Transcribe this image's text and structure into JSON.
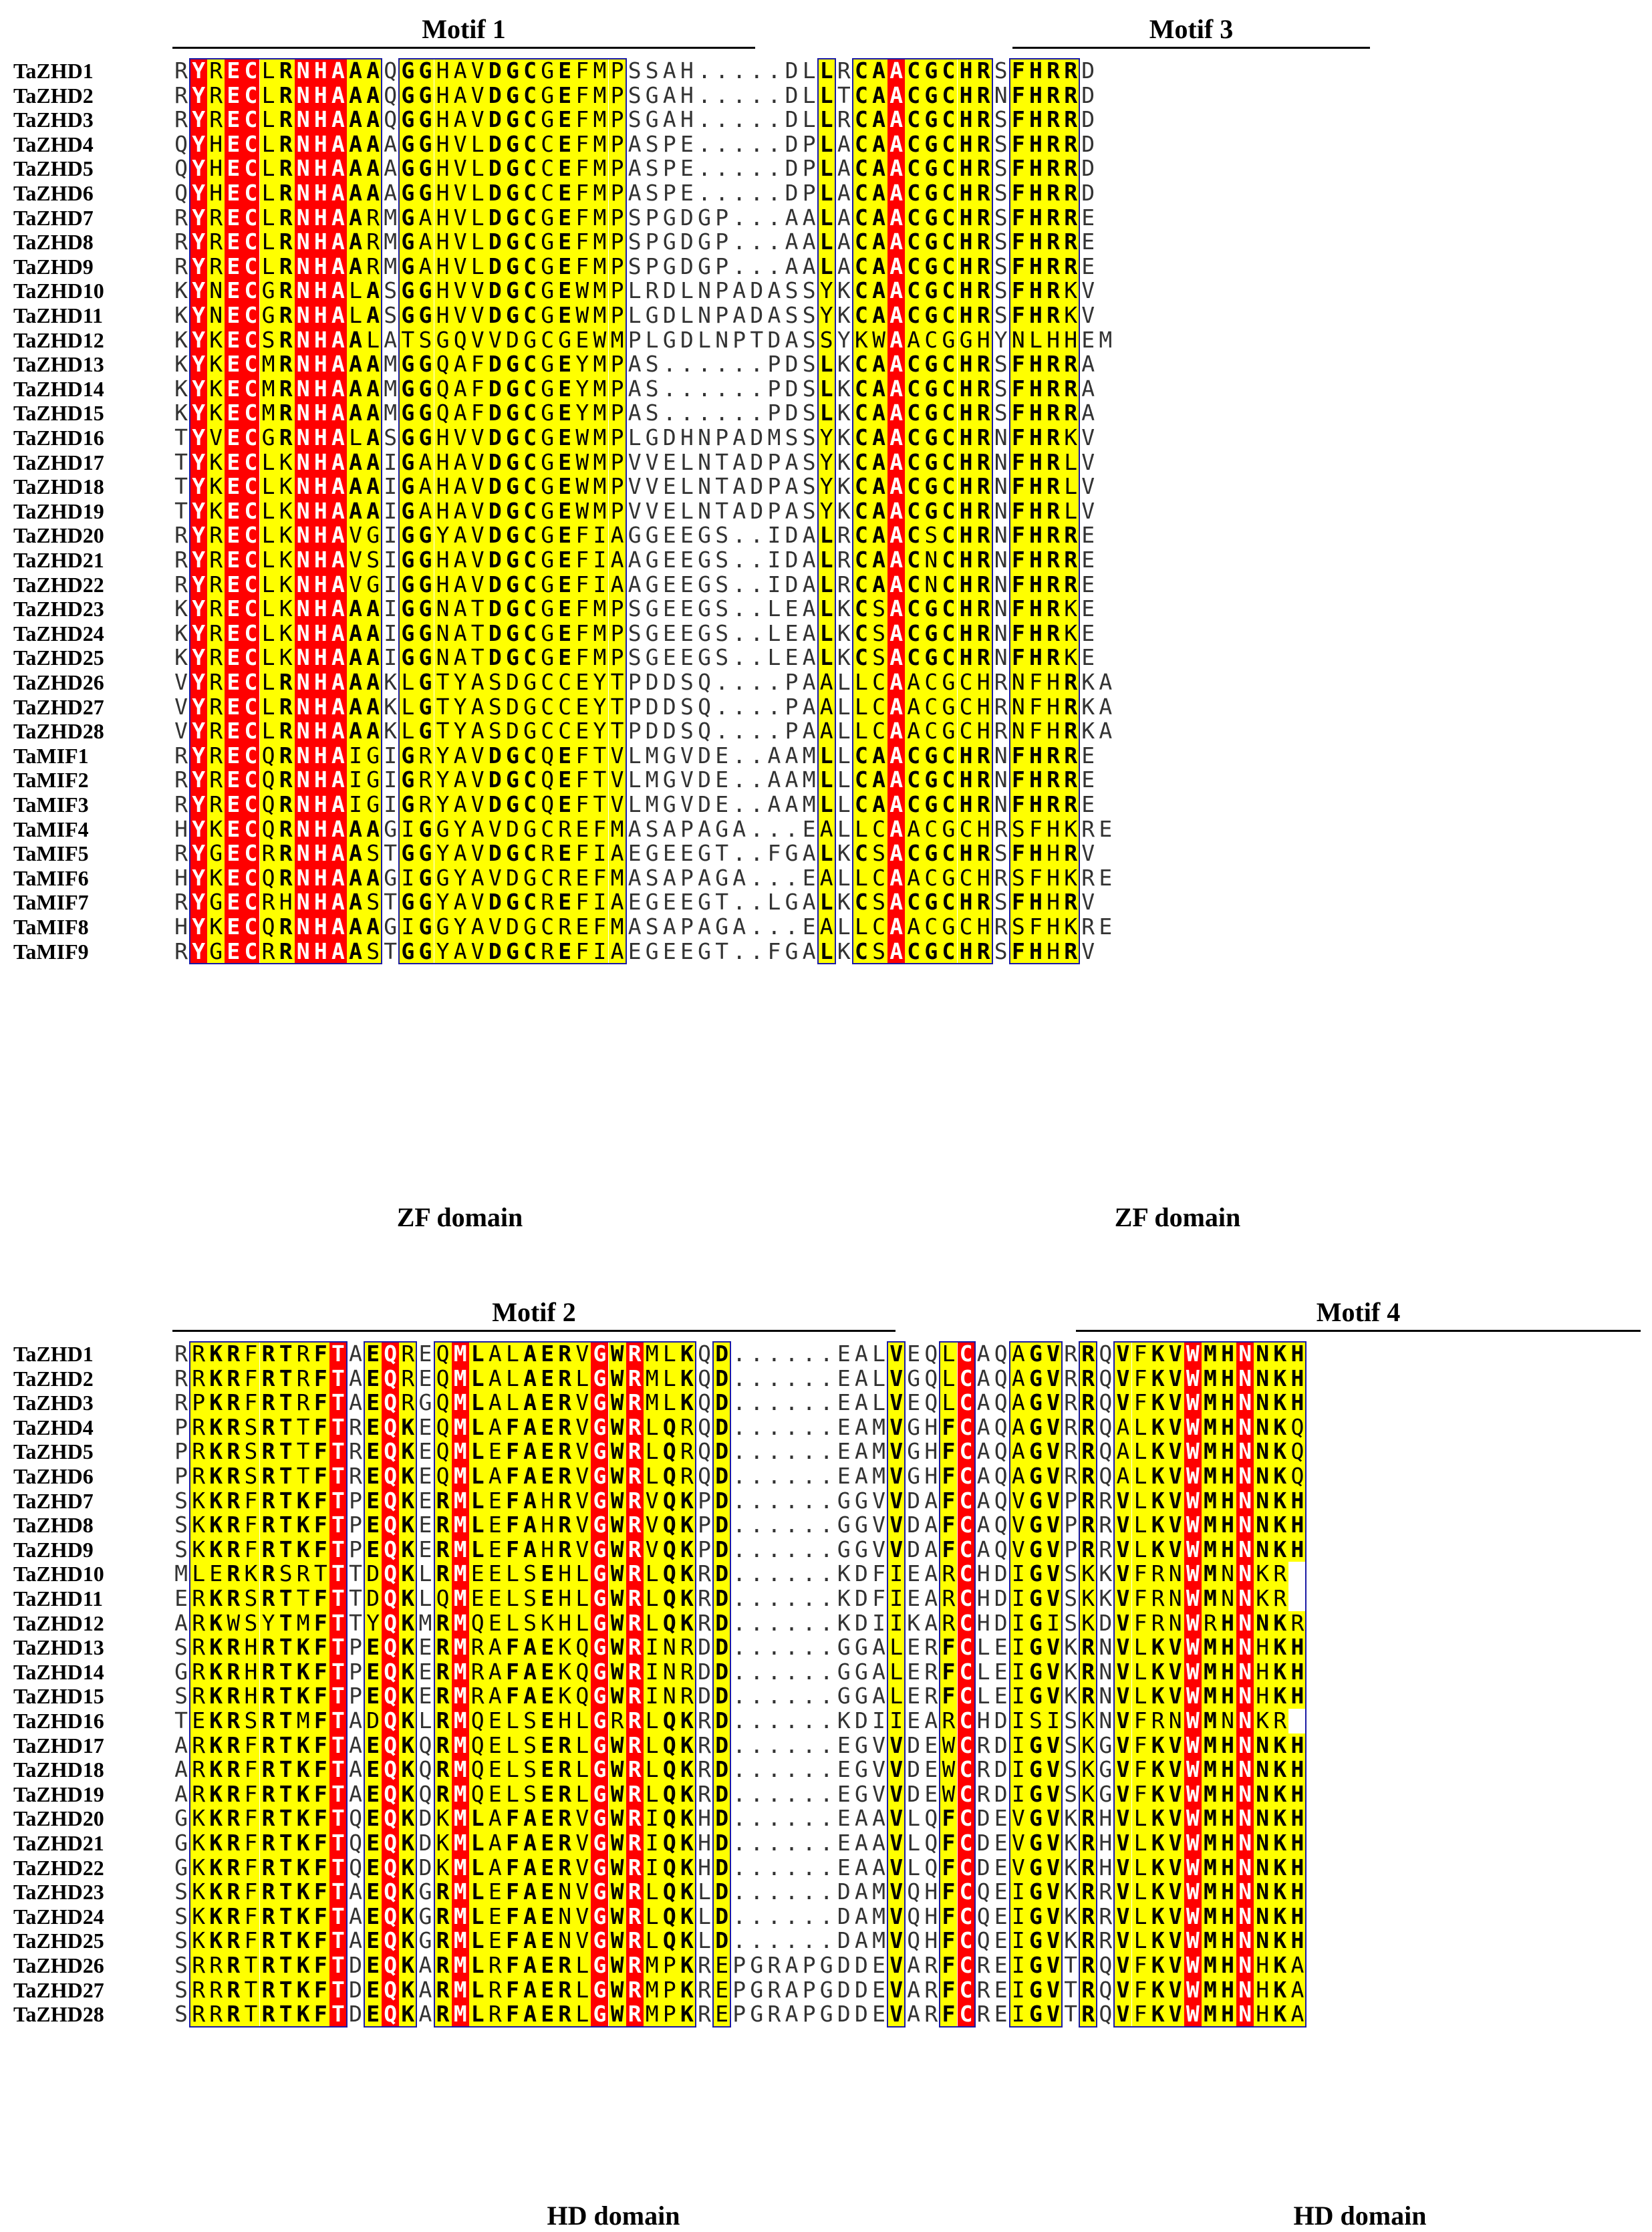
{
  "colors": {
    "identical": "#ff0000",
    "similar": "#ffff00",
    "frame": "#1a1aa6"
  },
  "panel1": {
    "motifs": [
      {
        "label": "Motif 1"
      },
      {
        "label": "Motif 3"
      }
    ],
    "domains": [
      {
        "label": "ZF domain"
      },
      {
        "label": "ZF domain"
      }
    ],
    "sequences": [
      {
        "name": "TaZHD1",
        "seq": "RYRECLRNHAAAQGGHAVDGCGEFMPSSAH.....DLLRCAACGCHRSFHRRD"
      },
      {
        "name": "TaZHD2",
        "seq": "RYRECLRNHAAAQGGHAVDGCGEFMPSGAH.....DLLTCAACGCHRNFHRRD"
      },
      {
        "name": "TaZHD3",
        "seq": "RYRECLRNHAAAQGGHAVDGCGEFMPSGAH.....DLLRCAACGCHRSFHRRD"
      },
      {
        "name": "TaZHD4",
        "seq": "QYHECLRNHAAAAGGHVLDGCCEFMPASPE.....DPLACAACGCHRSFHRRD"
      },
      {
        "name": "TaZHD5",
        "seq": "QYHECLRNHAAAAGGHVLDGCCEFMPASPE.....DPLACAACGCHRSFHRRD"
      },
      {
        "name": "TaZHD6",
        "seq": "QYHECLRNHAAAAGGHVLDGCCEFMPASPE.....DPLACAACGCHRSFHRRD"
      },
      {
        "name": "TaZHD7",
        "seq": "RYRECLRNHAARMGAHVLDGCGEFMPSPGDGP...AALACAACGCHRSFHRRE"
      },
      {
        "name": "TaZHD8",
        "seq": "RYRECLRNHAARMGAHVLDGCGEFMPSPGDGP...AALACAACGCHRSFHRRE"
      },
      {
        "name": "TaZHD9",
        "seq": "RYRECLRNHAARMGAHVLDGCGEFMPSPGDGP...AALACAACGCHRSFHRRE"
      },
      {
        "name": "TaZHD10",
        "seq": "KYNECGRNHALASGGHVVDGCGEWMPLRDLNPADASSYKCAACGCHRSFHRKV"
      },
      {
        "name": "TaZHD11",
        "seq": "KYNECGRNHALASGGHVVDGCGEWMPLGDLNPADASSYKCAACGCHRSFHRKV"
      },
      {
        "name": "TaZHD12",
        "seq": "KYKECSRNHAALATSGQVVDGCGEWMPLGDLNPTDASSYKWAACGGHYNLHHEM"
      },
      {
        "name": "TaZHD13",
        "seq": "KYKECMRNHAAAMGGQAFDGCGEYMPAS......PDSLKCAACGCHRSFHRRA"
      },
      {
        "name": "TaZHD14",
        "seq": "KYKECMRNHAAAMGGQAFDGCGEYMPAS......PDSLKCAACGCHRSFHRRA"
      },
      {
        "name": "TaZHD15",
        "seq": "KYKECMRNHAAAMGGQAFDGCGEYMPAS......PDSLKCAACGCHRSFHRRA"
      },
      {
        "name": "TaZHD16",
        "seq": "TYVECGRNHALASGGHVVDGCGEWMPLGDHNPADMSSYKCAACGCHRNFHRKV"
      },
      {
        "name": "TaZHD17",
        "seq": "TYKECLKNHAAAIGAHAVDGCGEWMPVVELNTADPASYKCAACGCHRNFHRLV"
      },
      {
        "name": "TaZHD18",
        "seq": "TYKECLKNHAAAIGAHAVDGCGEWMPVVELNTADPASYKCAACGCHRNFHRLV"
      },
      {
        "name": "TaZHD19",
        "seq": "TYKECLKNHAAAIGAHAVDGCGEWMPVVELNTADPASYKCAACGCHRNFHRLV"
      },
      {
        "name": "TaZHD20",
        "seq": "RYRECLKNHAVGIGGYAVDGCGEFIAGGEEGS..IDALRCAACSCHRNFHRRE"
      },
      {
        "name": "TaZHD21",
        "seq": "RYRECLKNHAVSIGGHAVDGCGEFIAAGEEGS..IDALRCAACNCHRNFHRRE"
      },
      {
        "name": "TaZHD22",
        "seq": "RYRECLKNHAVGIGGHAVDGCGEFIAAGEEGS..IDALRCAACNCHRNFHRRE"
      },
      {
        "name": "TaZHD23",
        "seq": "KYRECLKNHAAAIGGNATDGCGEFMPSGEEGS..LEALKCSACGCHRNFHRKE"
      },
      {
        "name": "TaZHD24",
        "seq": "KYRECLKNHAAAIGGNATDGCGEFMPSGEEGS..LEALKCSACGCHRNFHRKE"
      },
      {
        "name": "TaZHD25",
        "seq": "KYRECLKNHAAAIGGNATDGCGEFMPSGEEGS..LEALKCSACGCHRNFHRKE"
      },
      {
        "name": "TaZHD26",
        "seq": "VYRECLRNHAAAKLGTYASDGCCEYTPDDSQ....PAALLCAACGCHRNFHRKA"
      },
      {
        "name": "TaZHD27",
        "seq": "VYRECLRNHAAAKLGTYASDGCCEYTPDDSQ....PAALLCAACGCHRNFHRKA"
      },
      {
        "name": "TaZHD28",
        "seq": "VYRECLRNHAAAKLGTYASDGCCEYTPDDSQ....PAALLCAACGCHRNFHRKA"
      },
      {
        "name": "TaMIF1",
        "seq": "RYRECQRNHAIGIGRYAVDGCQEFTVLMGVDE..AAMLLCAACGCHRNFHRRE"
      },
      {
        "name": "TaMIF2",
        "seq": "RYRECQRNHAIGIGRYAVDGCQEFTVLMGVDE..AAMLLCAACGCHRNFHRRE"
      },
      {
        "name": "TaMIF3",
        "seq": "RYRECQRNHAIGIGRYAVDGCQEFTVLMGVDE..AAMLLCAACGCHRNFHRRE"
      },
      {
        "name": "TaMIF4",
        "seq": "HYKECQRNHAAAGIGGYAVDGCREFMASAPAGA...EALLCAACGCHRSFHKRE"
      },
      {
        "name": "TaMIF5",
        "seq": "RYGECRRNHAASTGGYAVDGCREFIAEGEEGT..FGALKCSACGCHRSFHHRV"
      },
      {
        "name": "TaMIF6",
        "seq": "HYKECQRNHAAAGIGGYAVDGCREFMASAPAGA...EALLCAACGCHRSFHKRE"
      },
      {
        "name": "TaMIF7",
        "seq": "RYGECRHNHAASTGGYAVDGCREFIAEGEEGT..LGALKCSACGCHRSFHHRV"
      },
      {
        "name": "TaMIF8",
        "seq": "HYKECQRNHAAAGIGGYAVDGCREFMASAPAGA...EALLCAACGCHRSFHKRE"
      },
      {
        "name": "TaMIF9",
        "seq": "RYGECRRNHAASTGGYAVDGCREFIAEGEEGT..FGALKCSACGCHRSFHHRV"
      }
    ]
  },
  "panel2": {
    "motifs": [
      {
        "label": "Motif 2"
      },
      {
        "label": "Motif 4"
      }
    ],
    "domains": [
      {
        "label": "HD domain"
      },
      {
        "label": "HD domain"
      }
    ],
    "sequences": [
      {
        "name": "TaZHD1",
        "seq": "RRKRFRTRFTAEQREQMLALAERVGWRMLKQD......EALVEQLCAQAGVRRQVFKVWMHNNKH"
      },
      {
        "name": "TaZHD2",
        "seq": "RRKRFRTRFTAEQREQMLALAERLGWRMLKQD......EALVGQLCAQAGVRRQVFKVWMHNNKH"
      },
      {
        "name": "TaZHD3",
        "seq": "RPKRFRTRFTAEQRGQMLALAERVGWRMLKQD......EALVEQLCAQAGVRRQVFKVWMHNNKH"
      },
      {
        "name": "TaZHD4",
        "seq": "PRKRSRTTFTREQKEQMLAFAERVGWRLQRQD......EAMVGHFCAQAGVRRQALKVWMHNNKQ"
      },
      {
        "name": "TaZHD5",
        "seq": "PRKRSRTTFTREQKEQMLEFAERVGWRLQRQD......EAMVGHFCAQAGVRRQALKVWMHNNKQ"
      },
      {
        "name": "TaZHD6",
        "seq": "PRKRSRTTFTREQKEQMLAFAERVGWRLQRQD......EAMVGHFCAQAGVRRQALKVWMHNNKQ"
      },
      {
        "name": "TaZHD7",
        "seq": "SKKRFRTKFTPEQKERMLEFAHRVGWRVQKPD......GGVVDAFCAQVGVPRRVLKVWMHNNKH"
      },
      {
        "name": "TaZHD8",
        "seq": "SKKRFRTKFTPEQKERMLEFAHRVGWRVQKPD......GGVVDAFCAQVGVPRRVLKVWMHNNKH"
      },
      {
        "name": "TaZHD9",
        "seq": "SKKRFRTKFTPEQKERMLEFAHRVGWRVQKPD......GGVVDAFCAQVGVPRRVLKVWMHNNKH"
      },
      {
        "name": "TaZHD10",
        "seq": "MLERKRSRTTTDQKLRMEELSEHLGWRLQKRD......KDFIEARCHDIGVSKKVFRNWMNNKR"
      },
      {
        "name": "TaZHD11",
        "seq": "ERKRSRTTFTTDQKLQMEELSEHLGWRLQKRD......KDFIEARCHDIGVSKKVFRNWMNNKR"
      },
      {
        "name": "TaZHD12",
        "seq": "ARKWSYTMFTTYQKMRMQELSKHLGWRLQKRD......KDIIKARCHDIGISKDVFRNWRHNNKR"
      },
      {
        "name": "TaZHD13",
        "seq": "SRKRHRTKFTPEQKERMRAFAEKQGWRINRDD......GGALERFCLEIGVKRNVLKVWMHNHKH"
      },
      {
        "name": "TaZHD14",
        "seq": "GRKRHRTKFTPEQKERMRAFAEKQGWRINRDD......GGALERFCLEIGVKRNVLKVWMHNHKH"
      },
      {
        "name": "TaZHD15",
        "seq": "SRKRHRTKFTPEQKERMRAFAEKQGWRINRDD......GGALERFCLEIGVKRNVLKVWMHNHKH"
      },
      {
        "name": "TaZHD16",
        "seq": "TEKRSRTMFTADQKLRMQELSEHLGRRLQKRD......KDIIEARCHDISISKNVFRNWMNNKR"
      },
      {
        "name": "TaZHD17",
        "seq": "ARKRFRTKFTAEQKQRMQELSERLGWRLQKRD......EGVVDEWCRDIGVSKGVFKVWMHNNKH"
      },
      {
        "name": "TaZHD18",
        "seq": "ARKRFRTKFTAEQKQRMQELSERLGWRLQKRD......EGVVDEWCRDIGVSKGVFKVWMHNNKH"
      },
      {
        "name": "TaZHD19",
        "seq": "ARKRFRTKFTAEQKQRMQELSERLGWRLQKRD......EGVVDEWCRDIGVSKGVFKVWMHNNKH"
      },
      {
        "name": "TaZHD20",
        "seq": "GKKRFRTKFTQEQKDKMLAFAERVGWRIQKHD......EAAVLQFCDEVGVKRHVLKVWMHNNKH"
      },
      {
        "name": "TaZHD21",
        "seq": "GKKRFRTKFTQEQKDKMLAFAERVGWRIQKHD......EAAVLQFCDEVGVKRHVLKVWMHNNKH"
      },
      {
        "name": "TaZHD22",
        "seq": "GKKRFRTKFTQEQKDKMLAFAERVGWRIQKHD......EAAVLQFCDEVGVKRHVLKVWMHNNKH"
      },
      {
        "name": "TaZHD23",
        "seq": "SKKRFRTKFTAEQKGRMLEFAENVGWRLQKLD......DAMVQHFCQEIGVKRRVLKVWMHNNKH"
      },
      {
        "name": "TaZHD24",
        "seq": "SKKRFRTKFTAEQKGRMLEFAENVGWRLQKLD......DAMVQHFCQEIGVKRRVLKVWMHNNKH"
      },
      {
        "name": "TaZHD25",
        "seq": "SKKRFRTKFTAEQKGRMLEFAENVGWRLQKLD......DAMVQHFCQEIGVKRRVLKVWMHNNKH"
      },
      {
        "name": "TaZHD26",
        "seq": "SRRRTRTKFTDEQKARMLRFAERLGWRMPKREPGRAPGDDEVARFCREIGVTRQVFKVWMHNHKA"
      },
      {
        "name": "TaZHD27",
        "seq": "SRRRTRTKFTDEQKARMLRFAERLGWRMPKREPGRAPGDDEVARFCREIGVTRQVFKVWMHNHKA"
      },
      {
        "name": "TaZHD28",
        "seq": "SRRRTRTKFTDEQKARMLRFAERLGWRMPKREPGRAPGDDEVARFCREIGVTRQVFKVWMHNHKA"
      }
    ]
  }
}
